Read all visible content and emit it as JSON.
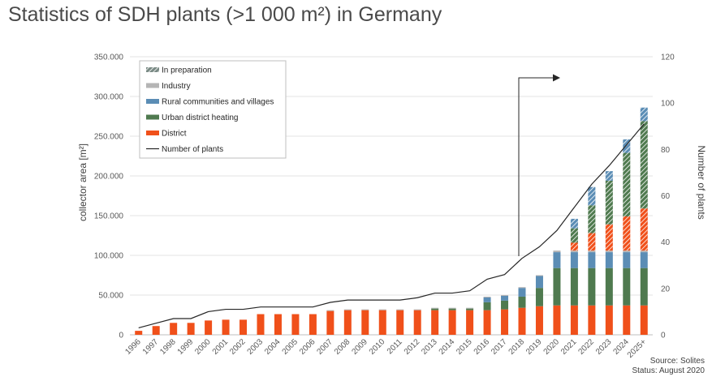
{
  "header": {
    "title": "Statistics of SDH plants (>1 000 m²) in Germany"
  },
  "footer": {
    "source": "Source: Solites",
    "status": "Status: August 2020"
  },
  "colors": {
    "district": "#f0501a",
    "urban": "#4f7a4f",
    "rural": "#5b8db5",
    "industry": "#b5b5b5",
    "line": "#262626"
  },
  "chart_data": {
    "type": "bar",
    "stacked": true,
    "title": "Statistics of SDH plants (>1 000 m²) in Germany",
    "ylabel": "collector area [m²]",
    "y2label": "Number of plants",
    "ylim": [
      0,
      350000
    ],
    "y2lim": [
      0,
      120
    ],
    "yticks": [
      "0",
      "50.000",
      "100.000",
      "150.000",
      "200.000",
      "250.000",
      "300.000",
      "350.000"
    ],
    "y2ticks": [
      "0",
      "20",
      "40",
      "60",
      "80",
      "100",
      "120"
    ],
    "grid": true,
    "legend_position": "top-left",
    "categories": [
      "1996",
      "1997",
      "1998",
      "1999",
      "2000",
      "2001",
      "2002",
      "2003",
      "2004",
      "2005",
      "2006",
      "2007",
      "2008",
      "2009",
      "2010",
      "2011",
      "2012",
      "2013",
      "2014",
      "2015",
      "2016",
      "2017",
      "2018",
      "2019",
      "2020",
      "2021",
      "2022",
      "2023",
      "2024",
      "2025+"
    ],
    "series": [
      {
        "name": "District",
        "key": "district",
        "pattern": false,
        "values": [
          5000,
          11000,
          15000,
          15000,
          18000,
          19000,
          19000,
          26000,
          26000,
          26000,
          26000,
          30000,
          31000,
          31000,
          31000,
          31000,
          31000,
          31000,
          31000,
          31000,
          31000,
          32000,
          34000,
          36000,
          37000,
          37000,
          37000,
          37000,
          37000,
          37000
        ]
      },
      {
        "name": "Urban district heating",
        "key": "urban",
        "pattern": false,
        "values": [
          0,
          0,
          0,
          0,
          0,
          0,
          0,
          0,
          0,
          0,
          0,
          0,
          0,
          0,
          0,
          0,
          0,
          2000,
          2000,
          2000,
          10000,
          11000,
          14000,
          23000,
          47000,
          47000,
          47000,
          47000,
          47000,
          47000
        ]
      },
      {
        "name": "Rural communities and villages",
        "key": "rural",
        "pattern": false,
        "values": [
          0,
          0,
          0,
          0,
          0,
          0,
          0,
          0,
          0,
          0,
          0,
          0,
          0,
          0,
          0,
          0,
          0,
          0,
          0,
          0,
          6000,
          6000,
          11000,
          15000,
          20000,
          20000,
          20000,
          20000,
          20000,
          20000
        ]
      },
      {
        "name": "Industry",
        "key": "industry",
        "pattern": false,
        "values": [
          0,
          0,
          0,
          0,
          0,
          0,
          0,
          0,
          0,
          0,
          0,
          1000,
          1000,
          1000,
          1000,
          1000,
          1000,
          1000,
          1000,
          1000,
          1000,
          1000,
          1000,
          1000,
          2000,
          2000,
          2000,
          2000,
          2000,
          2000
        ]
      },
      {
        "name": "In preparation - District",
        "key": "district",
        "pattern": true,
        "values": [
          0,
          0,
          0,
          0,
          0,
          0,
          0,
          0,
          0,
          0,
          0,
          0,
          0,
          0,
          0,
          0,
          0,
          0,
          0,
          0,
          0,
          0,
          0,
          0,
          0,
          10000,
          22000,
          33000,
          43000,
          53000
        ]
      },
      {
        "name": "In preparation - Urban district heating",
        "key": "urban",
        "pattern": true,
        "values": [
          0,
          0,
          0,
          0,
          0,
          0,
          0,
          0,
          0,
          0,
          0,
          0,
          0,
          0,
          0,
          0,
          0,
          0,
          0,
          0,
          0,
          0,
          0,
          0,
          0,
          18000,
          35000,
          55000,
          80000,
          110000
        ]
      },
      {
        "name": "In preparation - Rural communities and villages",
        "key": "rural",
        "pattern": true,
        "values": [
          0,
          0,
          0,
          0,
          0,
          0,
          0,
          0,
          0,
          0,
          0,
          0,
          0,
          0,
          0,
          0,
          0,
          0,
          0,
          0,
          0,
          0,
          0,
          0,
          0,
          12000,
          23000,
          12000,
          17000,
          17000
        ]
      }
    ],
    "number_of_plants": {
      "name": "Number of plants",
      "values": [
        3,
        5,
        7,
        7,
        10,
        11,
        11,
        12,
        12,
        12,
        12,
        14,
        15,
        15,
        15,
        15,
        16,
        18,
        18,
        19,
        24,
        26,
        33,
        38,
        45,
        55,
        65,
        73,
        82,
        91
      ]
    },
    "legend": [
      "In preparation",
      "Industry",
      "Rural communities and villages",
      "Urban district heating",
      "District",
      "Number of plants"
    ]
  }
}
